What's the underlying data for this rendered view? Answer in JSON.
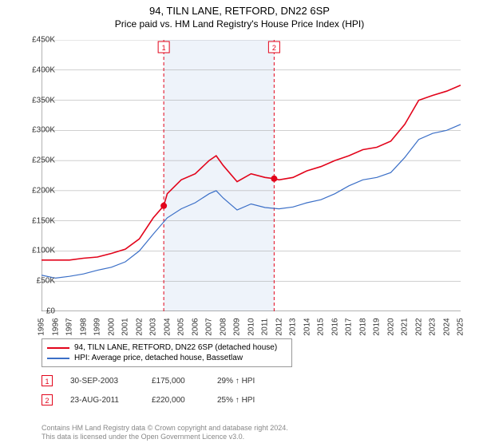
{
  "title": "94, TILN LANE, RETFORD, DN22 6SP",
  "subtitle": "Price paid vs. HM Land Registry's House Price Index (HPI)",
  "chart": {
    "type": "line",
    "background_color": "#ffffff",
    "grid_color": "#a0a0a0",
    "shaded_band_color": "#eef3fa",
    "shaded_band_xstart": 2003.75,
    "shaded_band_xend": 2011.65,
    "xlim": [
      1995,
      2025
    ],
    "ylim": [
      0,
      450000
    ],
    "ytick_step": 50000,
    "ytick_labels": [
      "£0",
      "£50K",
      "£100K",
      "£150K",
      "£200K",
      "£250K",
      "£300K",
      "£350K",
      "£400K",
      "£450K"
    ],
    "xtick_labels": [
      "1995",
      "1996",
      "1997",
      "1998",
      "1999",
      "2000",
      "2001",
      "2002",
      "2003",
      "2004",
      "2005",
      "2006",
      "2007",
      "2008",
      "2009",
      "2010",
      "2011",
      "2012",
      "2013",
      "2014",
      "2015",
      "2016",
      "2017",
      "2018",
      "2019",
      "2020",
      "2021",
      "2022",
      "2023",
      "2024",
      "2025"
    ],
    "label_fontsize": 10,
    "series": [
      {
        "name": "94, TILN LANE, RETFORD, DN22 6SP (detached house)",
        "color": "#e2041b",
        "line_width": 1.6,
        "y_by_year": {
          "1995": 85000,
          "1996": 85000,
          "1997": 85000,
          "1998": 88000,
          "1999": 90000,
          "2000": 96000,
          "2001": 103000,
          "2002": 120000,
          "2003": 155000,
          "2003.75": 175000,
          "2004": 195000,
          "2005": 218000,
          "2006": 228000,
          "2007": 250000,
          "2007.5": 258000,
          "2008": 242000,
          "2009": 215000,
          "2010": 228000,
          "2011": 222000,
          "2011.65": 220000,
          "2012": 218000,
          "2013": 222000,
          "2014": 233000,
          "2015": 240000,
          "2016": 250000,
          "2017": 258000,
          "2018": 268000,
          "2019": 272000,
          "2020": 282000,
          "2021": 310000,
          "2022": 350000,
          "2023": 358000,
          "2024": 365000,
          "2025": 375000
        }
      },
      {
        "name": "HPI: Average price, detached house, Bassetlaw",
        "color": "#3b6fc7",
        "line_width": 1.2,
        "y_by_year": {
          "1995": 60000,
          "1996": 55000,
          "1997": 58000,
          "1998": 62000,
          "1999": 68000,
          "2000": 73000,
          "2001": 82000,
          "2002": 100000,
          "2003": 128000,
          "2004": 155000,
          "2005": 170000,
          "2006": 180000,
          "2007": 195000,
          "2007.5": 200000,
          "2008": 188000,
          "2009": 168000,
          "2010": 178000,
          "2011": 172000,
          "2012": 170000,
          "2013": 173000,
          "2014": 180000,
          "2015": 185000,
          "2016": 195000,
          "2017": 208000,
          "2018": 218000,
          "2019": 222000,
          "2020": 230000,
          "2021": 255000,
          "2022": 285000,
          "2023": 295000,
          "2024": 300000,
          "2025": 310000
        }
      }
    ],
    "sale_markers": [
      {
        "label": "1",
        "x": 2003.75,
        "y": 175000,
        "box_color": "#e2041b",
        "line_style": "dashed"
      },
      {
        "label": "2",
        "x": 2011.65,
        "y": 220000,
        "box_color": "#e2041b",
        "line_style": "dashed"
      }
    ]
  },
  "legend": {
    "rows": [
      {
        "color": "#e2041b",
        "label": "94, TILN LANE, RETFORD, DN22 6SP (detached house)"
      },
      {
        "color": "#3b6fc7",
        "label": "HPI: Average price, detached house, Bassetlaw"
      }
    ]
  },
  "sales_table": [
    {
      "marker": "1",
      "marker_color": "#e2041b",
      "date": "30-SEP-2003",
      "price": "£175,000",
      "delta": "29% ↑ HPI"
    },
    {
      "marker": "2",
      "marker_color": "#e2041b",
      "date": "23-AUG-2011",
      "price": "£220,000",
      "delta": "25% ↑ HPI"
    }
  ],
  "attribution": {
    "line1": "Contains HM Land Registry data © Crown copyright and database right 2024.",
    "line2": "This data is licensed under the Open Government Licence v3.0."
  }
}
